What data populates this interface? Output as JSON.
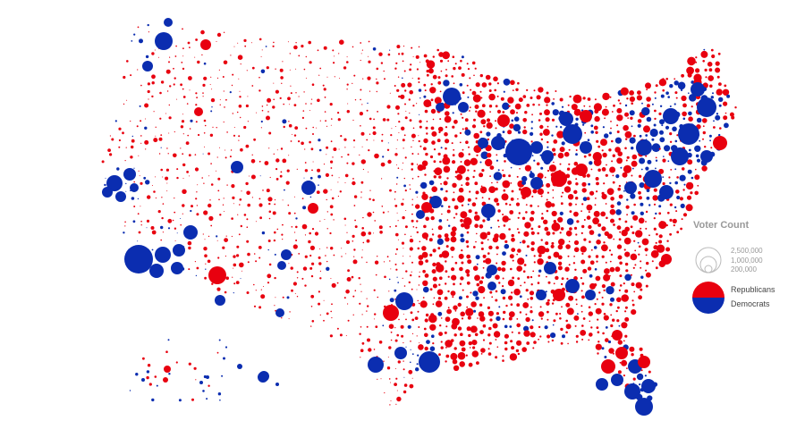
{
  "legend": {
    "title": "Voter Count",
    "sizes": [
      "2,500,000",
      "1,000,000",
      "200,000"
    ],
    "parties": [
      {
        "name": "Republicans",
        "color": "#e8000f"
      },
      {
        "name": "Democrats",
        "color": "#0b2db0"
      }
    ]
  },
  "colors": {
    "republican": "#e8000f",
    "democrat": "#0b2db0"
  }
}
